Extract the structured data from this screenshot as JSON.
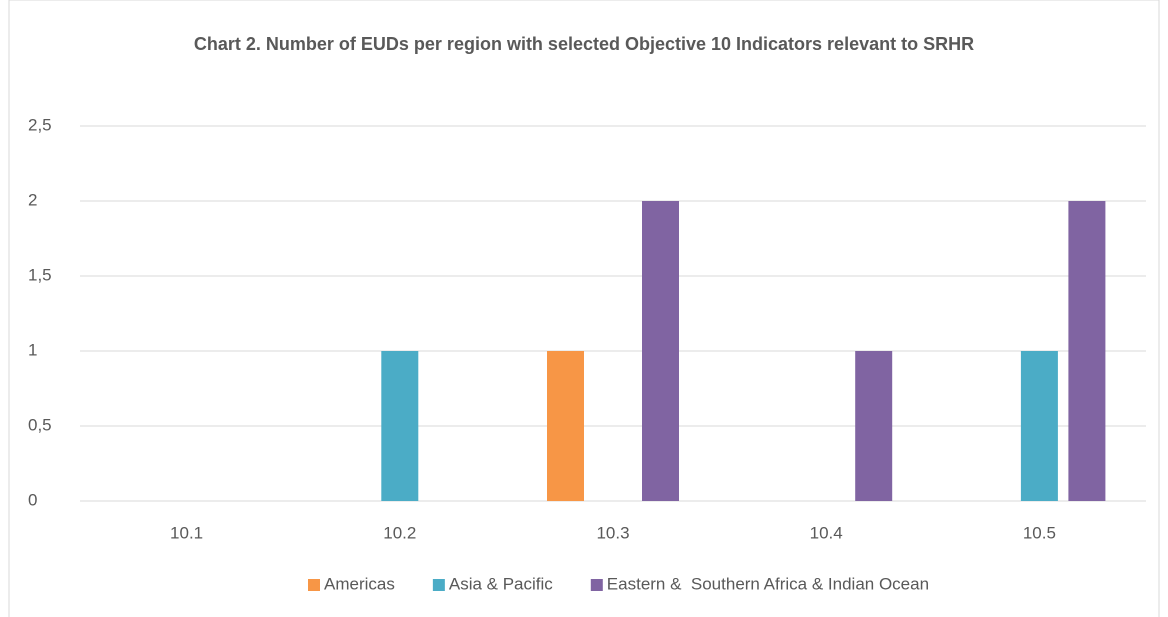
{
  "chart_data": {
    "type": "bar",
    "title": "Chart 2. Number of EUDs per region with selected Objective 10 Indicators relevant to SRHR",
    "categories": [
      "10.1",
      "10.2",
      "10.3",
      "10.4",
      "10.5"
    ],
    "series": [
      {
        "name": "Americas",
        "color": "#f79646",
        "values": [
          0,
          0,
          1,
          0,
          0
        ]
      },
      {
        "name": "Asia & Pacific",
        "color": "#4bacc6",
        "values": [
          0,
          1,
          0,
          0,
          1
        ]
      },
      {
        "name": "Eastern &  Southern Africa & Indian Ocean",
        "color": "#8064a2",
        "values": [
          0,
          0,
          2,
          1,
          2
        ]
      }
    ],
    "ylim": [
      0,
      2.5
    ],
    "yticks": [
      0,
      {
        "value": 0.5,
        "label": "0,5"
      },
      1,
      {
        "value": 1.5,
        "label": "1,5"
      },
      2,
      {
        "value": 2.5,
        "label": "2,5"
      }
    ],
    "grid": true,
    "legend": "bottom"
  }
}
